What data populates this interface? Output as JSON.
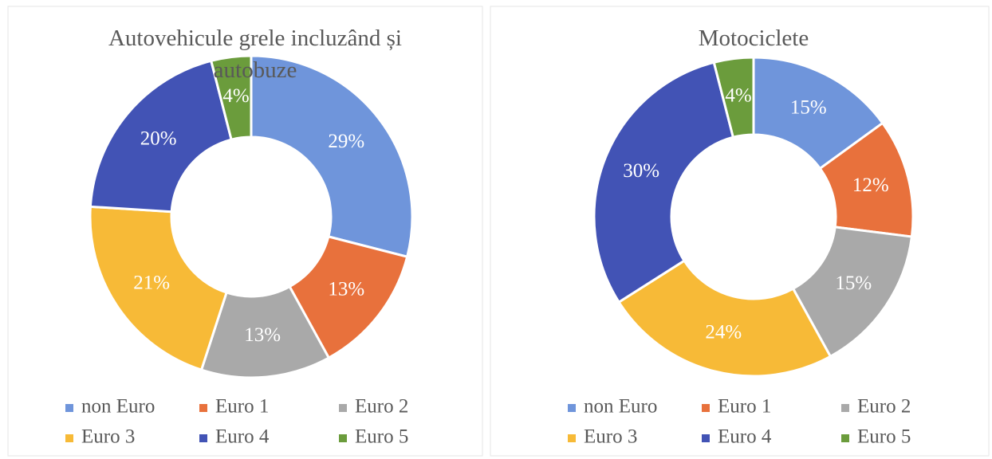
{
  "chart_data": [
    {
      "type": "donut",
      "title": "Autovehicule grele incluzând și autobuze",
      "categories": [
        "non Euro",
        "Euro 1",
        "Euro 2",
        "Euro 3",
        "Euro 4",
        "Euro 5"
      ],
      "values": [
        29,
        13,
        13,
        21,
        20,
        4
      ],
      "value_labels": [
        "29%",
        "13%",
        "13%",
        "21%",
        "20%",
        "4%"
      ],
      "colors": [
        "#6f95db",
        "#e8713c",
        "#a9a9a9",
        "#f7ba37",
        "#4253b5",
        "#6b9c3c"
      ],
      "legend": "bottom"
    },
    {
      "type": "donut",
      "title": "Motociclete",
      "categories": [
        "non Euro",
        "Euro 1",
        "Euro 2",
        "Euro 3",
        "Euro 4",
        "Euro 5"
      ],
      "values": [
        15,
        12,
        15,
        24,
        30,
        4
      ],
      "value_labels": [
        "15%",
        "12%",
        "15%",
        "24%",
        "30%",
        "4%"
      ],
      "colors": [
        "#6f95db",
        "#e8713c",
        "#a9a9a9",
        "#f7ba37",
        "#4253b5",
        "#6b9c3c"
      ],
      "legend": "bottom"
    }
  ]
}
